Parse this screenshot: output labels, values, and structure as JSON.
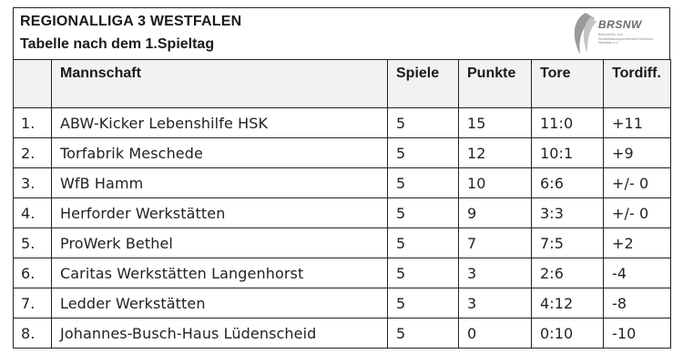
{
  "header": {
    "title": "REGIONALLIGA 3 WESTFALEN",
    "subtitle": "Tabelle nach dem 1.Spieltag"
  },
  "logo": {
    "name": "BRSNW",
    "tagline": "Behinderten- und Rehabilitationssportverband Nordrhein-Westfalen e.V."
  },
  "table": {
    "columns": [
      "",
      "Mannschaft",
      "Spiele",
      "Punkte",
      "Tore",
      "Tordiff."
    ],
    "rows": [
      {
        "rank": "1.",
        "team": "ABW-Kicker Lebenshilfe HSK",
        "spiele": "5",
        "punkte": "15",
        "tore": "11:0",
        "diff": "+11"
      },
      {
        "rank": "2.",
        "team": "Torfabrik Meschede",
        "spiele": "5",
        "punkte": "12",
        "tore": "10:1",
        "diff": "+9"
      },
      {
        "rank": "3.",
        "team": "WfB Hamm",
        "spiele": "5",
        "punkte": "10",
        "tore": "6:6",
        "diff": "+/- 0"
      },
      {
        "rank": "4.",
        "team": "Herforder Werkstätten",
        "spiele": "5",
        "punkte": "9",
        "tore": "3:3",
        "diff": "+/- 0"
      },
      {
        "rank": "5.",
        "team": "ProWerk Bethel",
        "spiele": "5",
        "punkte": "7",
        "tore": "7:5",
        "diff": "+2"
      },
      {
        "rank": "6.",
        "team": "Caritas Werkstätten Langenhorst",
        "spiele": "5",
        "punkte": "3",
        "tore": "2:6",
        "diff": "-4"
      },
      {
        "rank": "7.",
        "team": "Ledder Werkstätten",
        "spiele": "5",
        "punkte": "3",
        "tore": "4:12",
        "diff": "-8"
      },
      {
        "rank": "8.",
        "team": "Johannes-Busch-Haus Lüdenscheid",
        "spiele": "5",
        "punkte": "0",
        "tore": "0:10",
        "diff": "-10"
      }
    ]
  }
}
